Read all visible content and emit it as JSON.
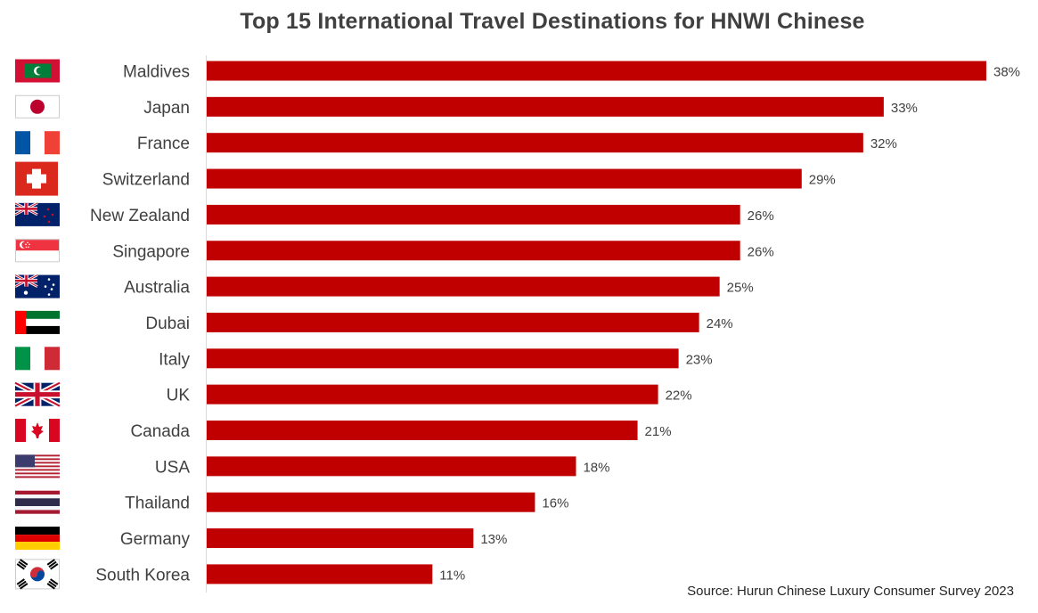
{
  "chart_data": {
    "type": "bar",
    "orientation": "horizontal",
    "title": "Top 15 International Travel Destinations for HNWI Chinese",
    "categories": [
      "Maldives",
      "Japan",
      "France",
      "Switzerland",
      "New Zealand",
      "Singapore",
      "Australia",
      "Dubai",
      "Italy",
      "UK",
      "Canada",
      "USA",
      "Thailand",
      "Germany",
      "South Korea"
    ],
    "values": [
      38,
      33,
      32,
      29,
      26,
      26,
      25,
      24,
      23,
      22,
      21,
      18,
      16,
      13,
      11
    ],
    "value_labels": [
      "38%",
      "33%",
      "32%",
      "29%",
      "26%",
      "26%",
      "25%",
      "24%",
      "23%",
      "22%",
      "21%",
      "18%",
      "16%",
      "13%",
      "11%"
    ],
    "flag_icons": [
      "maldives-flag-icon",
      "japan-flag-icon",
      "france-flag-icon",
      "switzerland-flag-icon",
      "new-zealand-flag-icon",
      "singapore-flag-icon",
      "australia-flag-icon",
      "uae-flag-icon",
      "italy-flag-icon",
      "uk-flag-icon",
      "canada-flag-icon",
      "usa-flag-icon",
      "thailand-flag-icon",
      "germany-flag-icon",
      "south-korea-flag-icon"
    ],
    "xlim": [
      0,
      38
    ],
    "bar_color": "#c00000",
    "grid": false,
    "legend": "none"
  },
  "source": "Source: Hurun Chinese Luxury Consumer Survey 2023"
}
